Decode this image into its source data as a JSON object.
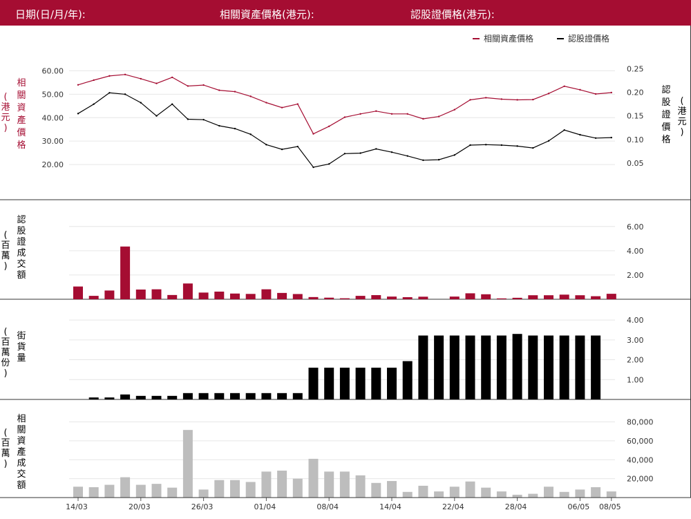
{
  "header": {
    "date_label": "日期(日/月/年):",
    "asset_price_label": "相關資產價格(港元):",
    "warrant_price_label": "認股證價格(港元):"
  },
  "colors": {
    "brand": "#a50d32",
    "warrant": "#000000",
    "asset_turnover": "#bdbdbd",
    "grid": "#e6e6e6"
  },
  "chart_data": [
    {
      "type": "line",
      "x_tick_labels": [
        "14/03",
        "20/03",
        "26/03",
        "01/04",
        "08/04",
        "14/04",
        "22/04",
        "28/04",
        "06/05",
        "08/05"
      ],
      "legend": [
        "相關資產價格",
        "認股證價格"
      ],
      "legend_position": "top-right",
      "grid": true,
      "series": [
        {
          "name": "相關資產價格",
          "axis": "left",
          "color": "#a50d32",
          "values": [
            54.0,
            56.0,
            57.8,
            58.4,
            56.6,
            54.6,
            57.2,
            53.5,
            53.9,
            51.7,
            51.1,
            49.1,
            46.4,
            44.3,
            45.8,
            33.1,
            36.3,
            40.2,
            41.6,
            42.8,
            41.6,
            41.6,
            39.5,
            40.5,
            43.4,
            47.6,
            48.5,
            47.9,
            47.6,
            47.7,
            50.3,
            53.4,
            51.9,
            50.1,
            50.7
          ]
        },
        {
          "name": "認股證價格",
          "axis": "right",
          "color": "#000000",
          "values": [
            0.155,
            0.175,
            0.199,
            0.196,
            0.178,
            0.15,
            0.175,
            0.143,
            0.142,
            0.129,
            0.123,
            0.111,
            0.089,
            0.079,
            0.085,
            0.041,
            0.048,
            0.07,
            0.071,
            0.08,
            0.073,
            0.065,
            0.056,
            0.057,
            0.067,
            0.088,
            0.089,
            0.088,
            0.086,
            0.082,
            0.097,
            0.12,
            0.11,
            0.103,
            0.104
          ]
        }
      ],
      "y_left": {
        "label": "相關資產價格 (港元)",
        "ticks": [
          "60.00",
          "50.00",
          "40.00",
          "30.00",
          "20.00"
        ],
        "range": [
          10.6,
          72.5
        ]
      },
      "y_right": {
        "label": "認股證價格 (港元)",
        "ticks": [
          "0.25",
          "0.20",
          "0.15",
          "0.10",
          "0.05"
        ],
        "range": [
          0.0,
          0.308
        ]
      }
    },
    {
      "type": "bar",
      "ylabel": "認股證成交額 (百萬)",
      "y_ticks": [
        "6.00",
        "4.00",
        "2.00"
      ],
      "range": [
        0,
        7.3
      ],
      "color": "#a50d32",
      "values": [
        1.05,
        0.28,
        0.72,
        4.35,
        0.8,
        0.82,
        0.35,
        1.3,
        0.55,
        0.63,
        0.47,
        0.44,
        0.82,
        0.52,
        0.43,
        0.18,
        0.13,
        0.08,
        0.28,
        0.34,
        0.22,
        0.17,
        0.21,
        0.0,
        0.22,
        0.49,
        0.41,
        0.07,
        0.12,
        0.33,
        0.33,
        0.38,
        0.33,
        0.25,
        0.45
      ]
    },
    {
      "type": "bar",
      "ylabel": "街貨量 (百萬份)",
      "y_ticks": [
        "4.00",
        "3.00",
        "2.00",
        "1.00"
      ],
      "range": [
        0,
        4.7
      ],
      "color": "#000000",
      "values": [
        0.0,
        0.1,
        0.1,
        0.25,
        0.18,
        0.18,
        0.18,
        0.32,
        0.32,
        0.32,
        0.32,
        0.32,
        0.32,
        0.32,
        0.32,
        1.6,
        1.6,
        1.6,
        1.6,
        1.6,
        1.6,
        1.93,
        3.22,
        3.22,
        3.22,
        3.22,
        3.22,
        3.22,
        3.3,
        3.22,
        3.22,
        3.22,
        3.22,
        3.22,
        0.0
      ]
    },
    {
      "type": "bar",
      "ylabel": "相關資產成交額 (百萬)",
      "y_ticks": [
        "80,000",
        "60,000",
        "40,000",
        "20,000"
      ],
      "range": [
        0,
        95000
      ],
      "color": "#bdbdbd",
      "values": [
        11500,
        11000,
        13500,
        21500,
        13500,
        14500,
        10500,
        71500,
        8500,
        18500,
        18500,
        16500,
        27500,
        28500,
        20000,
        41000,
        27500,
        27500,
        23500,
        15500,
        17500,
        6000,
        12500,
        6500,
        11500,
        17000,
        10500,
        6500,
        3000,
        4000,
        11500,
        6000,
        8500,
        11000,
        6500
      ]
    }
  ]
}
